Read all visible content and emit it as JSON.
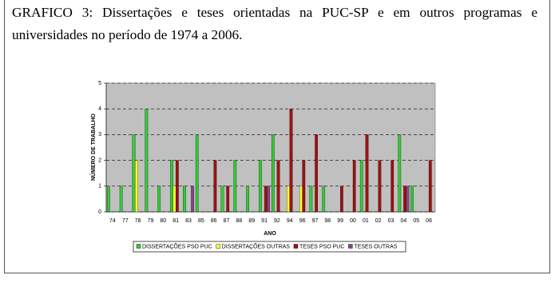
{
  "chart_data": {
    "type": "bar",
    "title": "GRAFICO 3: Dissertações e teses orientadas na PUC-SP e em outros programas e universidades no período de 1974 a 2006.",
    "x_label": "ANO",
    "y_label": "NÚMERO DE TRABALHO",
    "categories": [
      "74",
      "77",
      "78",
      "79",
      "80",
      "81",
      "83",
      "85",
      "86",
      "87",
      "88",
      "89",
      "91",
      "92",
      "94",
      "96",
      "97",
      "98",
      "99",
      "00",
      "01",
      "02",
      "03",
      "04",
      "05",
      "06"
    ],
    "series": [
      {
        "name": "DISSERTAÇÕES PSO PUC",
        "color": "#33cc33",
        "values": [
          1,
          1,
          3,
          4,
          1,
          2,
          1,
          3,
          0,
          1,
          2,
          1,
          2,
          3,
          0,
          0,
          1,
          1,
          0,
          0,
          2,
          0,
          0,
          3,
          1,
          0
        ]
      },
      {
        "name": "DISSERTAÇÕES OUTRAS",
        "color": "#ffff33",
        "values": [
          0,
          0,
          2,
          0,
          0,
          1,
          0,
          0,
          0,
          0,
          0,
          0,
          0,
          0,
          1,
          1,
          0,
          0,
          0,
          0,
          0,
          0,
          0,
          0,
          0,
          0
        ]
      },
      {
        "name": "TESES PSO PUC",
        "color": "#a01010",
        "values": [
          0,
          0,
          0,
          0,
          0,
          2,
          0,
          0,
          2,
          1,
          0,
          0,
          1,
          2,
          4,
          2,
          3,
          0,
          1,
          2,
          3,
          2,
          2,
          1,
          0,
          2
        ]
      },
      {
        "name": "TESES OUTRAS",
        "color": "#884488",
        "values": [
          0,
          0,
          0,
          0,
          0,
          0,
          1,
          0,
          0,
          0,
          0,
          0,
          1,
          0,
          0,
          0,
          0,
          0,
          0,
          0,
          0,
          0,
          0,
          1,
          0,
          0
        ]
      }
    ],
    "ylim": [
      0,
      5
    ],
    "yticks": [
      0,
      1,
      2,
      3,
      4,
      5
    ],
    "grid": true
  }
}
